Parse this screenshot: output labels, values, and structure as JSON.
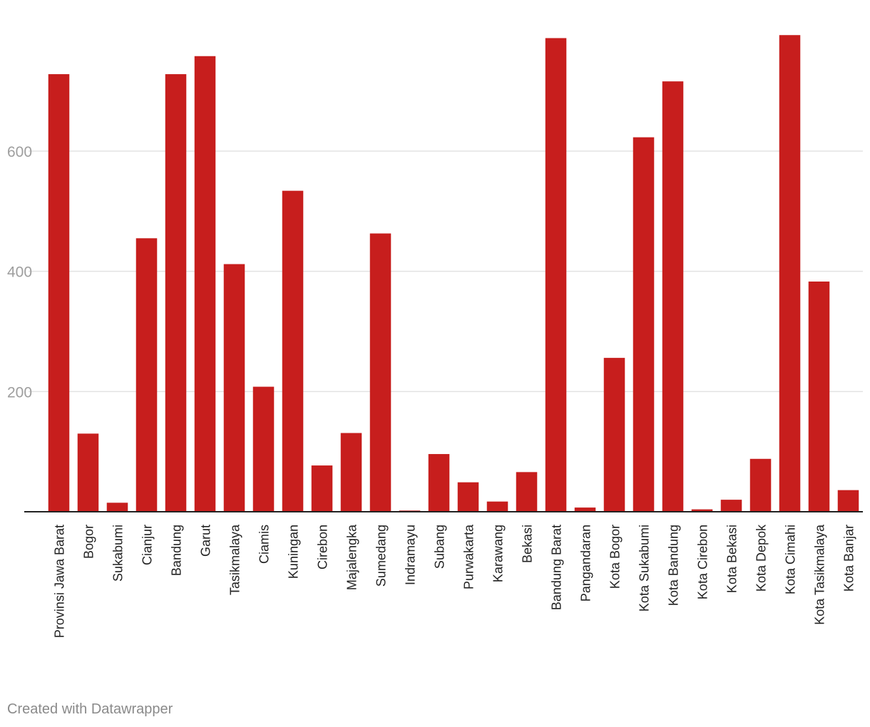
{
  "chart_data": {
    "type": "bar",
    "categories": [
      "Provinsi Jawa Barat",
      "Bogor",
      "Sukabumi",
      "Cianjur",
      "Bandung",
      "Garut",
      "Tasikmalaya",
      "Ciamis",
      "Kuningan",
      "Cirebon",
      "Majalengka",
      "Sumedang",
      "Indramayu",
      "Subang",
      "Purwakarta",
      "Karawang",
      "Bekasi",
      "Bandung Barat",
      "Pangandaran",
      "Kota Bogor",
      "Kota Sukabumi",
      "Kota Bandung",
      "Kota Cirebon",
      "Kota Bekasi",
      "Kota Depok",
      "Kota Cimahi",
      "Kota Tasikmalaya",
      "Kota Banjar"
    ],
    "values": [
      728,
      130,
      15,
      455,
      728,
      758,
      412,
      208,
      534,
      77,
      131,
      463,
      2,
      96,
      49,
      17,
      66,
      788,
      7,
      256,
      623,
      716,
      4,
      20,
      88,
      793,
      383,
      36
    ],
    "ylim": [
      0,
      800
    ],
    "yticks": [
      "200",
      "400",
      "600"
    ],
    "ytick_values": [
      200,
      400,
      600
    ],
    "grid": true,
    "bar_color": "#c71e1d",
    "grid_color": "#e3e3e3",
    "axis_color": "#222222",
    "tick_label_color": "#9e9e9e",
    "category_label_color": "#222222"
  },
  "footer": {
    "credit": "Created with Datawrapper"
  }
}
